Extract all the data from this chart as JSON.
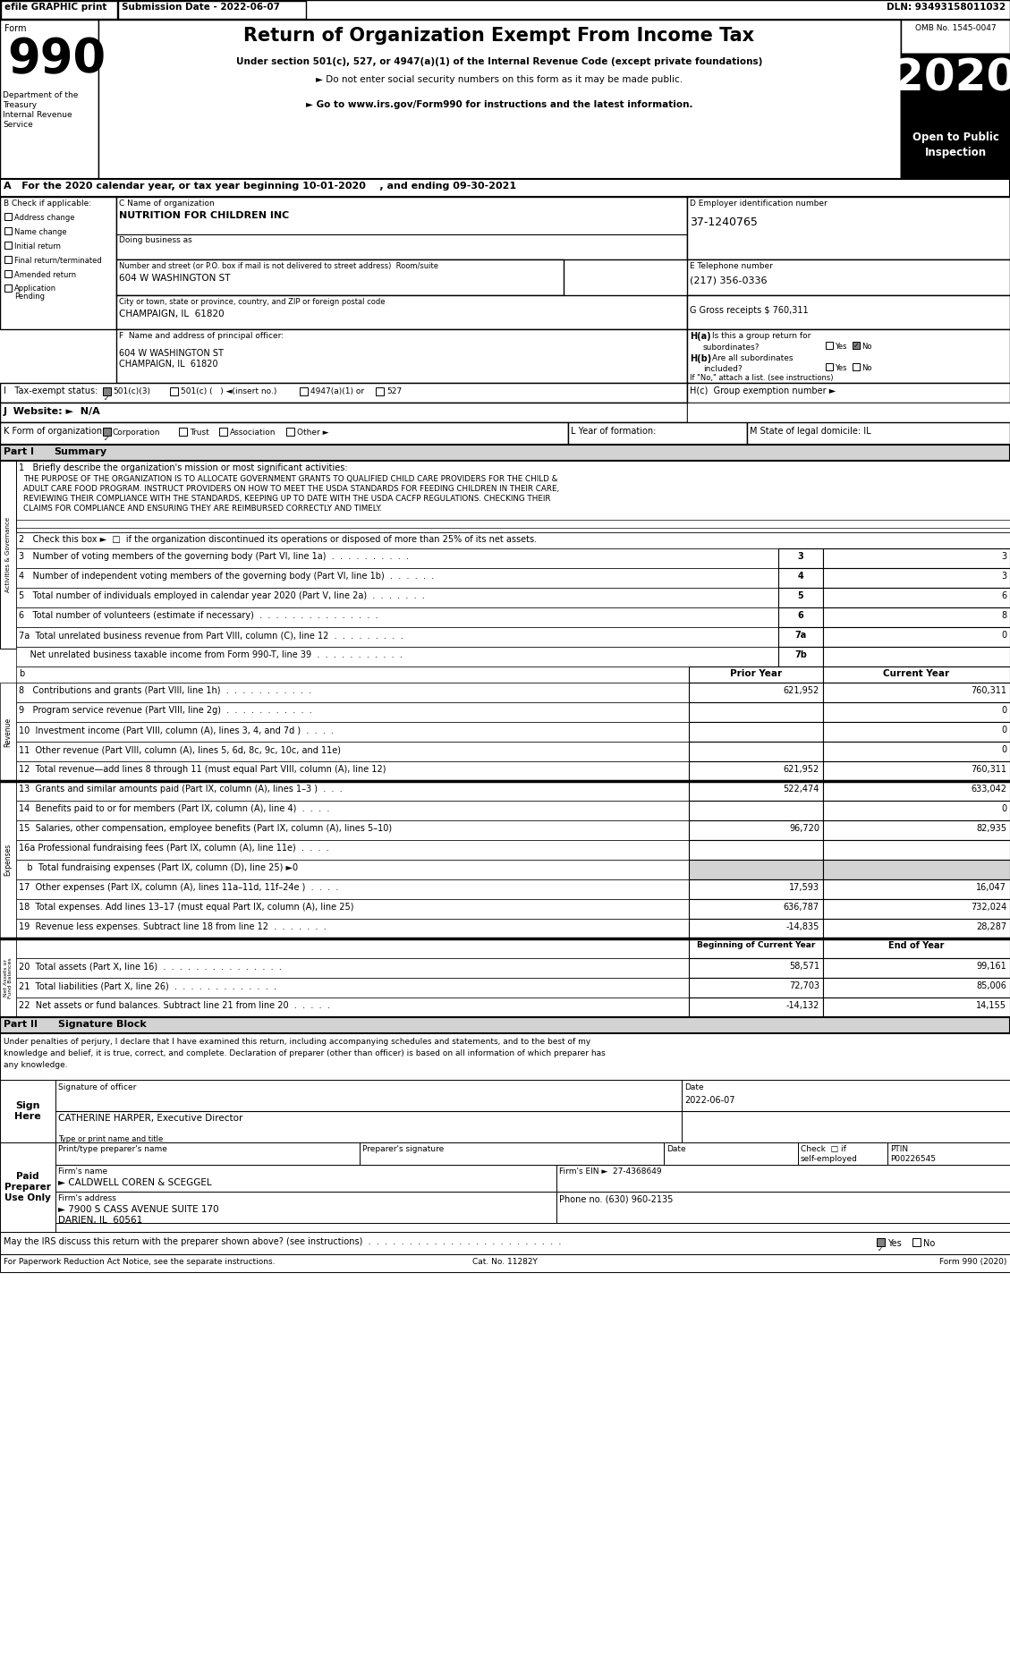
{
  "main_title": "Return of Organization Exempt From Income Tax",
  "subtitle1": "Under section 501(c), 527, or 4947(a)(1) of the Internal Revenue Code (except private foundations)",
  "subtitle2": "► Do not enter social security numbers on this form as it may be made public.",
  "subtitle3": "► Go to www.irs.gov/Form990 for instructions and the latest information.",
  "omb": "OMB No. 1545-0047",
  "year_box": "2020",
  "open_to_public": "Open to Public\nInspection",
  "dept_label1": "Department of the",
  "dept_label2": "Treasury",
  "dept_label3": "Internal Revenue",
  "dept_label4": "Service",
  "line_a": "A   For the 2020 calendar year, or tax year beginning 10-01-2020    , and ending 09-30-2021",
  "org_name": "NUTRITION FOR CHILDREN INC",
  "ein": "37-1240765",
  "street": "604 W WASHINGTON ST",
  "tel": "(217) 356-0336",
  "city": "CHAMPAIGN, IL  61820",
  "gross_receipts": "G Gross receipts $ 760,311",
  "principal_addr1": "604 W WASHINGTON ST",
  "principal_addr2": "CHAMPAIGN, IL  61820",
  "website": "J  Website: ►  N/A",
  "prior_year": "Prior Year",
  "current_year": "Current Year",
  "beg_curr_year": "Beginning of Current Year",
  "end_of_year": "End of Year",
  "sig_date": "2022-06-07",
  "officer_name": "CATHERINE HARPER, Executive Director",
  "firm_name": "► CALDWELL COREN & SCEGGEL",
  "firm_ein": "27-4368649",
  "firm_addr": "► 7900 S CASS AVENUE SUITE 170",
  "firm_city": "DARIEN, IL  60561",
  "firm_phone": "(630) 960-2135",
  "preparer_ptin": "P00226545",
  "bg_color": "#ffffff",
  "black": "#000000",
  "gray": "#808080",
  "lightgray": "#d3d3d3",
  "darkgray": "#a0a0a0"
}
